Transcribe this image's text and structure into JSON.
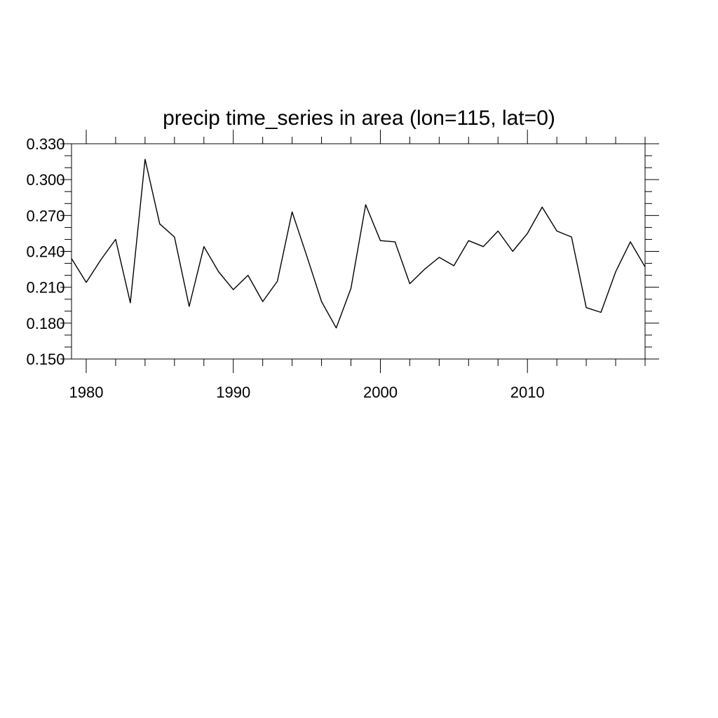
{
  "chart_data": {
    "type": "line",
    "title": "precip time_series in area (lon=115, lat=0)",
    "xlabel": "",
    "ylabel": "",
    "xlim": [
      1979,
      2018
    ],
    "ylim": [
      0.15,
      0.33
    ],
    "x_ticks": [
      1980,
      1990,
      2000,
      2010
    ],
    "x_tick_labels": [
      "1980",
      "1990",
      "2000",
      "2010"
    ],
    "x_minor_step": 2,
    "y_ticks": [
      0.15,
      0.18,
      0.21,
      0.24,
      0.27,
      0.3,
      0.33
    ],
    "y_tick_labels": [
      "0.150",
      "0.180",
      "0.210",
      "0.240",
      "0.270",
      "0.300",
      "0.330"
    ],
    "y_minor_step": 0.01,
    "grid": false,
    "series": [
      {
        "color": "#000000",
        "x": [
          1979,
          1980,
          1981,
          1982,
          1983,
          1984,
          1985,
          1986,
          1987,
          1988,
          1989,
          1990,
          1991,
          1992,
          1993,
          1994,
          1995,
          1996,
          1997,
          1998,
          1999,
          2000,
          2001,
          2002,
          2003,
          2004,
          2005,
          2006,
          2007,
          2008,
          2009,
          2010,
          2011,
          2012,
          2013,
          2014,
          2015,
          2016,
          2017,
          2018
        ],
        "values": [
          0.234,
          0.214,
          0.233,
          0.25,
          0.197,
          0.317,
          0.263,
          0.252,
          0.194,
          0.244,
          0.223,
          0.208,
          0.22,
          0.198,
          0.215,
          0.273,
          0.236,
          0.198,
          0.176,
          0.209,
          0.279,
          0.249,
          0.248,
          0.213,
          0.225,
          0.235,
          0.228,
          0.249,
          0.244,
          0.257,
          0.24,
          0.255,
          0.277,
          0.257,
          0.252,
          0.193,
          0.189,
          0.223,
          0.248,
          0.227
        ]
      }
    ]
  }
}
